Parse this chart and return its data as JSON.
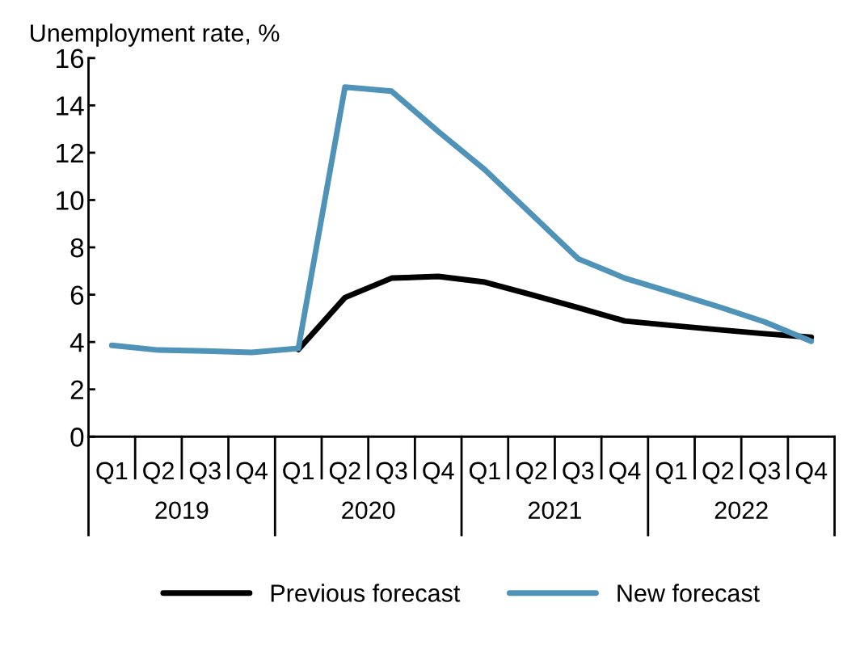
{
  "chart_data": {
    "type": "line",
    "ylabel": "Unemployment rate, %",
    "categories": [
      "Q1",
      "Q2",
      "Q3",
      "Q4",
      "Q1",
      "Q2",
      "Q3",
      "Q4",
      "Q1",
      "Q2",
      "Q3",
      "Q4",
      "Q1",
      "Q2",
      "Q3",
      "Q4"
    ],
    "annotations": [
      "2019",
      "2020",
      "2021",
      "2022"
    ],
    "series": [
      {
        "name": "Previous forecast",
        "color": "#000000",
        "values": [
          null,
          null,
          null,
          null,
          3.68,
          5.88,
          6.7,
          6.77,
          6.53,
          6.0,
          5.45,
          4.89,
          4.7,
          4.52,
          4.35,
          4.2
        ]
      },
      {
        "name": "New forecast",
        "color": "#4f93b8",
        "values": [
          3.86,
          3.66,
          3.62,
          3.56,
          3.73,
          14.77,
          14.6,
          12.9,
          11.28,
          9.4,
          7.52,
          6.7,
          6.1,
          5.5,
          4.85,
          4.03
        ]
      }
    ],
    "ylim": [
      0,
      16
    ],
    "yticks": [
      0,
      2,
      4,
      6,
      8,
      10,
      12,
      14,
      16
    ],
    "grid": false,
    "legend": "bottom",
    "line_style": "solid",
    "marker": "none"
  }
}
